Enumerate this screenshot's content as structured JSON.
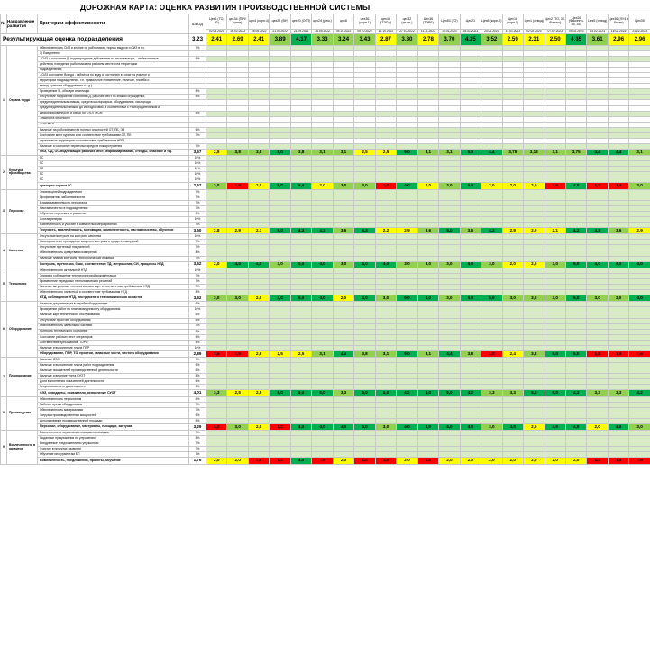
{
  "title": "ДОРОЖНАЯ КАРТА: ОЦЕНКА РАЗВИТИЯ ПРОИЗВОДСТВЕННОЙ СИСТЕМЫ",
  "header": {
    "no": "№",
    "section": "Направление развития",
    "criteria": "Критерии эффективности",
    "weight": "ШВОД",
    "columns": [
      {
        "name": "Цех2 (ТО, 30)",
        "date": "02.03.2023"
      },
      {
        "name": "цех34 (ПРУ, цепи)",
        "date": "28.02.2023"
      },
      {
        "name": "цех4 (корп.4)",
        "date": "28.05.2022"
      },
      {
        "name": "цех22 (ВН)",
        "date": "21.09.2022"
      },
      {
        "name": "цех20 (ОГП)",
        "date": "21.09.2022"
      },
      {
        "name": "цех24 (рем.)",
        "date": "28.09.2022"
      },
      {
        "name": "цех8",
        "date": "05.10.2022"
      },
      {
        "name": "цех36 (корп.1)",
        "date": "05.10.2022"
      },
      {
        "name": "цех44 (ТЭПА)",
        "date": "12.10.2022"
      },
      {
        "name": "цех32 (сп.оп.)",
        "date": "27.10.2022"
      },
      {
        "name": "Цех36 (ТЭРБ)",
        "date": "11.11.2022"
      },
      {
        "name": "Цех83 (ГО)",
        "date": "16.01.2023"
      },
      {
        "name": "Цех21",
        "date": "24.01.2023"
      },
      {
        "name": "Цех8 (корп.2)",
        "date": "24.01.2023"
      },
      {
        "name": "Цех16 (корп.5)",
        "date": "31.01.2023"
      },
      {
        "name": "Цех1 (отвод)",
        "date": "02.02.2023"
      },
      {
        "name": "Цех2 (ТО, 30, Финиш)",
        "date": "07.02.2023"
      },
      {
        "name": "Цех26 (Фасонно- об, 44)",
        "date": "09.02.2023"
      },
      {
        "name": "Цех5 (отвод)",
        "date": "14.02.2023"
      },
      {
        "name": "Цех36 (ЛУ4 и блоки)",
        "date": "16.02.2023"
      },
      {
        "name": "Цех39",
        "date": "21.02.2023"
      }
    ]
  },
  "summary": {
    "title": "Результирующая оценка подразделения",
    "shod": "3,23",
    "values": [
      "2,41",
      "2,69",
      "2,41",
      "3,89",
      "4,17",
      "3,33",
      "3,24",
      "3,43",
      "2,87",
      "3,80",
      "2,78",
      "3,70",
      "4,35",
      "3,52",
      "2,59",
      "2,31",
      "2,50",
      "4,35",
      "3,61",
      "2,96",
      "2,96"
    ]
  },
  "sections": [
    {
      "no": "1",
      "name": "Охрана труда",
      "criteria": [
        {
          "text": "Обеспеченность СИЗ и знание их работником, нормы выдачи и СИЗ в т.ч.",
          "weight": "7%"
        },
        {
          "text": "1) Ежедневно:",
          "weight": ""
        },
        {
          "text": "- СИЗ и состояние Д, подтверждение действиями по эксплуатации, - небезопасные",
          "weight": "6%"
        },
        {
          "text": "действия, поведение работников на рабочем месте и на территории",
          "weight": ""
        },
        {
          "text": "подразделения;",
          "weight": ""
        },
        {
          "text": "- СИЗ состояние Всегда - табличка по виду и состоянию в зонах на участке и",
          "weight": ""
        },
        {
          "text": "территории подразделения, т.е. правильное применение, наличие, пломба и",
          "weight": ""
        },
        {
          "text": "вывод в ремонт оборудования и т.д.)",
          "weight": ""
        },
        {
          "text": "Проведение 5 - обходов инспекции",
          "weight": "8%"
        },
        {
          "text": "Отсутствие нарушения состояний Д, рабочих мест по знакам ограждений,",
          "weight": "6%"
        },
        {
          "text": "предупредительным знакам, средств кислородных, оборудования, кислорода,",
          "weight": ""
        },
        {
          "text": "предупредительных знаков до их подготовки, в соответствии с Распорядительным и",
          "weight": ""
        },
        {
          "text": "Информированность и опрос по СУОТ/ИСМ",
          "weight": "5%"
        },
        {
          "text": "- паспорта опасности",
          "weight": ""
        },
        {
          "text": "- тесты НУ",
          "weight": ""
        },
        {
          "text": "Наличие на рабочих местах полных опасностей ОТ, ПБ, ЭБ",
          "weight": "6%"
        },
        {
          "text": "Состояние мест курения и их соответствие требованиям ОТ, ПБ",
          "weight": "7%"
        },
        {
          "text": "охраняемые территории и соответствие требованиям НРП",
          "weight": ""
        },
        {
          "text": "Наличие и состояние первичных средств пожаротушения",
          "weight": "7%"
        }
      ],
      "result": {
        "text": "ОХЗ, ОД, ОС подлежащих рабочих мест, информирование, стенды, опасные и т.д.",
        "value": "3,57",
        "scores": [
          "2,5",
          "3,8",
          "3,8",
          "5,0",
          "3,8",
          "3,1",
          "3,1",
          "2,5",
          "2,5",
          "5,0",
          "3,1",
          "3,1",
          "5,0",
          "4,4",
          "3,75",
          "3,13",
          "3,1",
          "3,75",
          "4,4",
          "4,4",
          "3,1"
        ]
      }
    },
    {
      "no": "2",
      "name": "Культура производства",
      "criteria": [
        {
          "text": "5С",
          "weight": "10%"
        },
        {
          "text": "5С",
          "weight": "10%"
        },
        {
          "text": "5С",
          "weight": "10%"
        },
        {
          "text": "5С",
          "weight": "10%"
        },
        {
          "text": "5С",
          "weight": "10%"
        }
      ],
      "result": {
        "text": "критерии оценки 5С",
        "value": "2,57",
        "scores": [
          "3,0",
          "1,0",
          "2,0",
          "5,0",
          "5,0",
          "2,0",
          "3,0",
          "3,0",
          "1,0",
          "4,0",
          "2,0",
          "3,0",
          "5,0",
          "2,0",
          "2,0",
          "2,0",
          "1,0",
          "4,0",
          "1,0",
          "1,0",
          "3,0"
        ]
      }
    },
    {
      "no": "3",
      "name": "Персонал",
      "criteria": [
        {
          "text": "Знание целей подразделения",
          "weight": "7%"
        },
        {
          "text": "Профилактика заболеваемости",
          "weight": "7%"
        },
        {
          "text": "Взаимозаменяемость персонала",
          "weight": "7%"
        },
        {
          "text": "Наставничество в подразделении",
          "weight": "7%"
        },
        {
          "text": "Обучение персонала и развитие",
          "weight": "8%"
        },
        {
          "text": "Состав резерва",
          "weight": "10%"
        },
        {
          "text": "Вовлеченность и участие в совместных мероприятиях",
          "weight": "7%"
        }
      ],
      "result": {
        "text": "Текучесть, вовлечённость, мотивация, компетентность, наставничество, обучение",
        "value": "3,50",
        "scores": [
          "2,8",
          "2,9",
          "2,1",
          "5,0",
          "4,3",
          "4,3",
          "3,6",
          "4,3",
          "2,2",
          "2,9",
          "3,6",
          "5,0",
          "3,6",
          "4,3",
          "2,9",
          "2,9",
          "2,1",
          "4,3",
          "4,3",
          "3,6",
          "2,9"
        ]
      }
    },
    {
      "no": "4",
      "name": "Качество",
      "criteria": [
        {
          "text": "Отсутствие/контроль на контроле качества",
          "weight": "10%"
        },
        {
          "text": "Своевременное проведение входного контроля и средств измерений",
          "weight": "7%"
        },
        {
          "text": "Отсутствие претензий покупателей",
          "weight": "7%"
        },
        {
          "text": "Обеспеченность средствами измерений",
          "weight": "8%"
        },
        {
          "text": "Наличие планов контроля технологических режимов",
          "weight": "7%"
        }
      ],
      "result": {
        "text": "Контроль, претензии, брак, соответствие ТД, метрология, СИ, процессы НТД",
        "value": "3,62",
        "scores": [
          "2,0",
          "4,0",
          "4,0",
          "3,0",
          "5,0",
          "4,0",
          "3,0",
          "4,0",
          "4,0",
          "3,0",
          "3,0",
          "3,0",
          "5,0",
          "3,0",
          "2,0",
          "2,0",
          "3,0",
          "5,0",
          "4,0",
          "4,0",
          "4,0"
        ]
      }
    },
    {
      "no": "5",
      "name": "Технология",
      "criteria": [
        {
          "text": "Обеспеченность актуальной НТД",
          "weight": "10%"
        },
        {
          "text": "Знание и соблюдение технологической документации",
          "weight": "7%"
        },
        {
          "text": "Применение передовых технологических решений",
          "weight": "7%"
        },
        {
          "text": "Наличие актуальных технологических карт и соответствие требованиям НТД",
          "weight": "7%"
        },
        {
          "text": "Обеспеченность оснасткой и соответствие требованиям НТД",
          "weight": "8%"
        }
      ],
      "result": {
        "text": "НТД, соблюдение НТД, инструмент и технологическая оснастка",
        "value": "3,62",
        "scores": [
          "3,0",
          "3,0",
          "2,0",
          "4,0",
          "5,0",
          "4,0",
          "2,0",
          "4,0",
          "3,0",
          "5,0",
          "4,0",
          "3,0",
          "5,0",
          "5,0",
          "3,0",
          "3,0",
          "3,0",
          "5,0",
          "3,0",
          "3,0",
          "4,0"
        ]
      }
    },
    {
      "no": "6",
      "name": "Оборудование",
      "criteria": [
        {
          "text": "Наличие документации в службе оборудования",
          "weight": "6%"
        },
        {
          "text": "Проведение работ по плановому ремонту оборудования",
          "weight": "10%"
        },
        {
          "text": "Наличие карт технического обслуживания",
          "weight": "6%"
        },
        {
          "text": "Отсутствие простоев оборудования",
          "weight": "6%"
        },
        {
          "text": "Обеспеченность запасными частями",
          "weight": "7%"
        },
        {
          "text": "Контроль технического состояния",
          "weight": "5%"
        },
        {
          "text": "Состояние рабочих мест операторов",
          "weight": "6%"
        },
        {
          "text": "Соответствие требованиям ТОРО",
          "weight": "5%"
        },
        {
          "text": "Наличие и выполнение плана ППР",
          "weight": "10%"
        }
      ],
      "result": {
        "text": "Оборудование, ППР, ТО, простои, запасные части, чистота оборудования",
        "value": "2,89",
        "scores": [
          "1,6",
          "1,9",
          "2,6",
          "2,5",
          "2,5",
          "3,1",
          "4,4",
          "3,8",
          "3,1",
          "5,0",
          "3,1",
          "4,4",
          "3,8",
          "1,8",
          "2,4",
          "3,8",
          "5,0",
          "5,0",
          "1,8",
          "1,9",
          "1,6"
        ]
      }
    },
    {
      "no": "7",
      "name": "Планирование",
      "criteria": [
        {
          "text": "Наличие СЭЗ",
          "weight": "7%"
        },
        {
          "text": "Наличие и выполнение плана работ подразделения",
          "weight": "6%"
        },
        {
          "text": "Наличие показателей производственной деятельности",
          "weight": "6%"
        },
        {
          "text": "Наличие и ведение учета СУОТ",
          "weight": "8%"
        },
        {
          "text": "Доля выполнения показателей деятельности",
          "weight": "6%"
        },
        {
          "text": "Результативность деятельности",
          "weight": "6%"
        }
      ],
      "result": {
        "text": "СЭЗ, стандарты, показатели, исполнение СУОТ",
        "value": "4,01",
        "scores": [
          "3,3",
          "2,5",
          "2,5",
          "5,0",
          "5,0",
          "5,0",
          "3,3",
          "5,0",
          "5,0",
          "4,2",
          "5,0",
          "5,0",
          "4,2",
          "3,3",
          "3,3",
          "5,0",
          "5,0",
          "4,2",
          "3,3",
          "3,3",
          "4,2"
        ]
      }
    },
    {
      "no": "8",
      "name": "Производство",
      "criteria": [
        {
          "text": "Обеспеченность персоналом",
          "weight": "6%"
        },
        {
          "text": "Рабочее время оборудования",
          "weight": "7%"
        },
        {
          "text": "Обеспеченность материалами",
          "weight": "7%"
        },
        {
          "text": "Загрузка производственных мощностей",
          "weight": "6%"
        },
        {
          "text": "Использование производственной площади",
          "weight": "6%"
        }
      ],
      "result": {
        "text": "Персонал, оборудование, материалы, площади, загрузка",
        "value": "3,29",
        "scores": [
          "1,0",
          "3,0",
          "2,0",
          "1,0",
          "4,0",
          "4,0",
          "4,0",
          "4,0",
          "3,0",
          "4,0",
          "4,0",
          "4,0",
          "4,0",
          "3,0",
          "4,0",
          "2,0",
          "4,0",
          "4,0",
          "2,0",
          "4,0",
          "3,0"
        ]
      }
    },
    {
      "no": "9",
      "name": "Вовлеченность в развитие",
      "criteria": [
        {
          "text": "Вовлеченность персонала в совершенствование",
          "weight": "7%"
        },
        {
          "text": "Поданные предложения по улучшению",
          "weight": "5%"
        },
        {
          "text": "Внедренные предложения по улучшению",
          "weight": "7%"
        },
        {
          "text": "Участие в проектах развития",
          "weight": "7%"
        },
        {
          "text": "Обучение инструментам БП",
          "weight": "7%"
        }
      ],
      "result": {
        "text": "Вовлеченность, предложения, проекты, обучение",
        "value": "1,76",
        "scores": [
          "2,0",
          "2,0",
          "1,0",
          "1,0",
          "4,0",
          "1,0",
          "2,0",
          "1,0",
          "1,0",
          "2,0",
          "1,0",
          "2,0",
          "2,0",
          "2,0",
          "2,0",
          "2,0",
          "2,0",
          "2,0",
          "1,0",
          "1,0",
          "1,0"
        ]
      }
    }
  ],
  "colors": {
    "red": "#ff0000",
    "orange": "#ffc000",
    "yellow": "#ffff00",
    "lightgreen": "#92d050",
    "green": "#00b050",
    "cell": "#d7ebc5"
  }
}
